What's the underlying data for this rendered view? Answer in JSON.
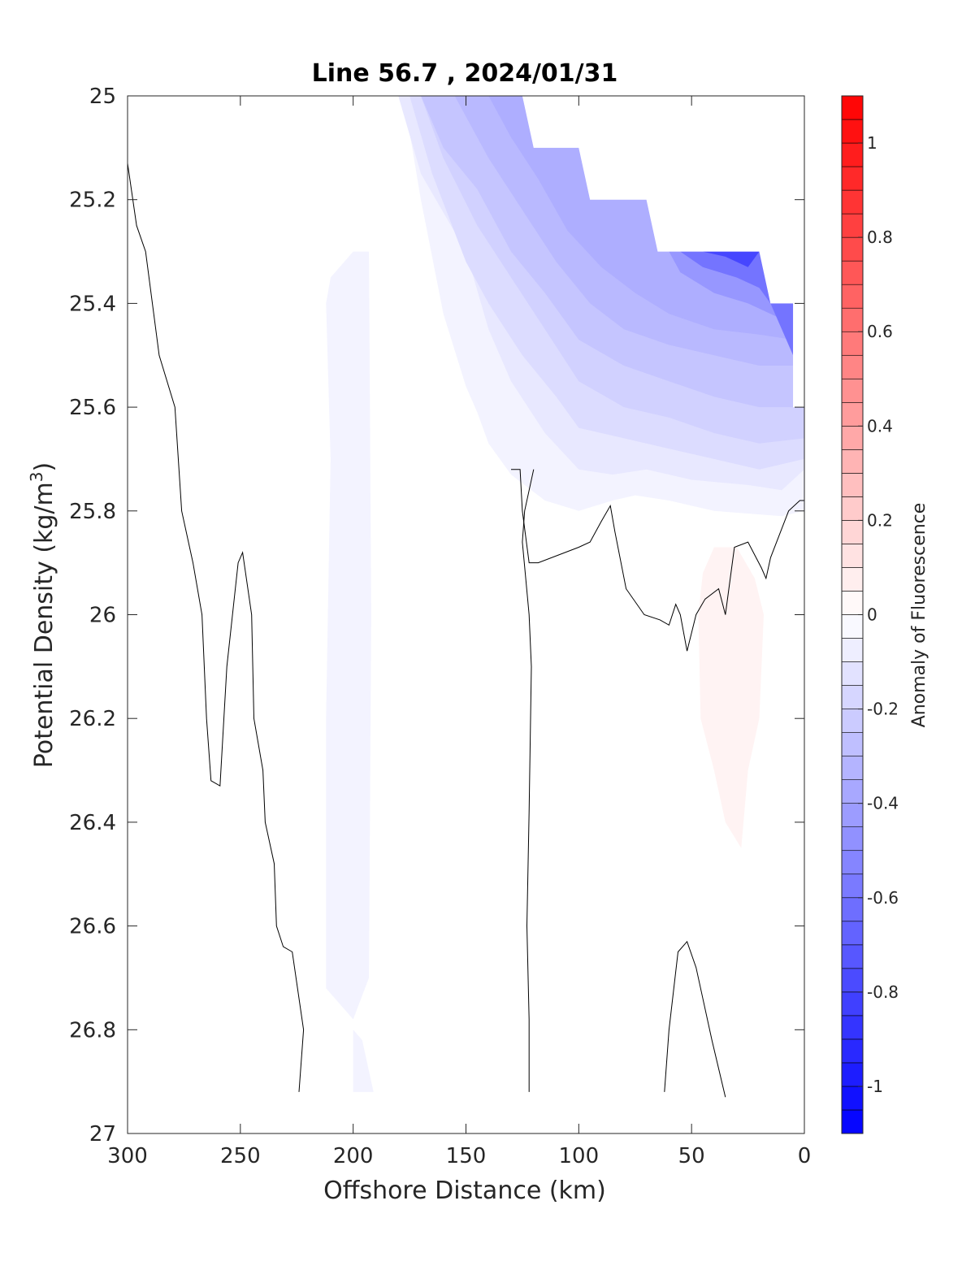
{
  "chart_data": {
    "type": "contour",
    "title": "Line 56.7 , 2024/01/31",
    "xlabel": "Offshore Distance (km)",
    "ylabel": "Potential Density (kg/m",
    "ylabel_sup": "3",
    "ylabel_close": ")",
    "xlim": [
      0,
      300
    ],
    "x_reversed": true,
    "ylim": [
      25,
      27
    ],
    "y_reversed": true,
    "xticks": [
      "300",
      "250",
      "200",
      "150",
      "100",
      "50",
      "0"
    ],
    "yticks": [
      "25",
      "25.2",
      "25.4",
      "25.6",
      "25.8",
      "26",
      "26.2",
      "26.4",
      "26.6",
      "26.8",
      "27"
    ],
    "colorbar": {
      "label": "Anomaly of Fluorescence",
      "range": [
        -1.1,
        1.1
      ],
      "step": 0.05,
      "ticks": [
        "-1",
        "-0.8",
        "-0.6",
        "-0.4",
        "-0.2",
        "0",
        "0.2",
        "0.4",
        "0.6",
        "0.8",
        "1"
      ],
      "low_color": "#0000ff",
      "mid_color": "#ffffff",
      "high_color": "#ff0000"
    },
    "no_data_region": [
      [
        300,
        25
      ],
      [
        125,
        25
      ],
      [
        120,
        25.1
      ],
      [
        100,
        25.1
      ],
      [
        95,
        25.2
      ],
      [
        70,
        25.2
      ],
      [
        65,
        25.3
      ],
      [
        20,
        25.3
      ],
      [
        15,
        25.4
      ],
      [
        5,
        25.4
      ],
      [
        5,
        25.6
      ],
      [
        0,
        25.6
      ],
      [
        0,
        25
      ],
      [
        300,
        25
      ]
    ],
    "filled_levels": [
      {
        "level": -0.05,
        "polygon": [
          [
            295,
            25
          ],
          [
            180,
            25
          ],
          [
            175,
            25.07
          ],
          [
            170,
            25.2
          ],
          [
            160,
            25.42
          ],
          [
            150,
            25.56
          ],
          [
            145,
            25.61
          ],
          [
            140,
            25.67
          ],
          [
            130,
            25.73
          ],
          [
            115,
            25.78
          ],
          [
            100,
            25.8
          ],
          [
            85,
            25.78
          ],
          [
            75,
            25.77
          ],
          [
            60,
            25.78
          ],
          [
            40,
            25.8
          ],
          [
            10,
            25.81
          ],
          [
            0,
            25.8
          ],
          [
            0,
            25.6
          ],
          [
            5,
            25.6
          ],
          [
            5,
            25.4
          ],
          [
            15,
            25.4
          ],
          [
            20,
            25.3
          ],
          [
            65,
            25.3
          ],
          [
            70,
            25.2
          ],
          [
            95,
            25.2
          ],
          [
            100,
            25.1
          ],
          [
            120,
            25.1
          ],
          [
            125,
            25
          ],
          [
            295,
            25
          ]
        ]
      },
      {
        "level": -0.05,
        "polygon": [
          [
            210,
            25.35
          ],
          [
            200,
            25.3
          ],
          [
            193,
            25.3
          ],
          [
            192,
            26
          ],
          [
            193,
            26.7
          ],
          [
            200,
            26.78
          ],
          [
            212,
            26.72
          ],
          [
            212,
            26.2
          ],
          [
            210,
            25.7
          ],
          [
            212,
            25.4
          ],
          [
            210,
            25.35
          ]
        ]
      },
      {
        "level": -0.05,
        "polygon": [
          [
            200,
            26.8
          ],
          [
            196,
            26.82
          ],
          [
            191,
            26.92
          ],
          [
            200,
            26.92
          ],
          [
            200,
            26.8
          ]
        ]
      },
      {
        "level": -0.1,
        "polygon": [
          [
            280,
            25
          ],
          [
            180,
            25
          ],
          [
            170,
            25.15
          ],
          [
            150,
            25.3
          ],
          [
            140,
            25.45
          ],
          [
            130,
            25.55
          ],
          [
            115,
            25.65
          ],
          [
            100,
            25.72
          ],
          [
            85,
            25.73
          ],
          [
            70,
            25.72
          ],
          [
            50,
            25.74
          ],
          [
            25,
            25.75
          ],
          [
            10,
            25.76
          ],
          [
            0,
            25.72
          ],
          [
            0,
            25.6
          ],
          [
            5,
            25.6
          ],
          [
            5,
            25.4
          ],
          [
            15,
            25.4
          ],
          [
            20,
            25.3
          ],
          [
            65,
            25.3
          ],
          [
            70,
            25.2
          ],
          [
            95,
            25.2
          ],
          [
            100,
            25.1
          ],
          [
            120,
            25.1
          ],
          [
            125,
            25
          ],
          [
            280,
            25
          ]
        ]
      },
      {
        "level": -0.15,
        "polygon": [
          [
            230,
            25
          ],
          [
            175,
            25
          ],
          [
            165,
            25.15
          ],
          [
            150,
            25.32
          ],
          [
            140,
            25.4
          ],
          [
            125,
            25.5
          ],
          [
            110,
            25.58
          ],
          [
            100,
            25.64
          ],
          [
            80,
            25.66
          ],
          [
            60,
            25.68
          ],
          [
            40,
            25.7
          ],
          [
            20,
            25.72
          ],
          [
            0,
            25.7
          ],
          [
            0,
            25.6
          ],
          [
            5,
            25.6
          ],
          [
            5,
            25.4
          ],
          [
            15,
            25.4
          ],
          [
            20,
            25.3
          ],
          [
            65,
            25.3
          ],
          [
            70,
            25.2
          ],
          [
            95,
            25.2
          ],
          [
            100,
            25.1
          ],
          [
            120,
            25.1
          ],
          [
            125,
            25
          ],
          [
            230,
            25
          ]
        ]
      },
      {
        "level": -0.2,
        "polygon": [
          [
            210,
            25
          ],
          [
            170,
            25
          ],
          [
            160,
            25.12
          ],
          [
            145,
            25.25
          ],
          [
            130,
            25.35
          ],
          [
            115,
            25.45
          ],
          [
            100,
            25.55
          ],
          [
            80,
            25.6
          ],
          [
            60,
            25.62
          ],
          [
            40,
            25.65
          ],
          [
            20,
            25.67
          ],
          [
            0,
            25.66
          ],
          [
            0,
            25.6
          ],
          [
            5,
            25.6
          ],
          [
            5,
            25.4
          ],
          [
            15,
            25.4
          ],
          [
            20,
            25.3
          ],
          [
            65,
            25.3
          ],
          [
            70,
            25.2
          ],
          [
            95,
            25.2
          ],
          [
            100,
            25.1
          ],
          [
            120,
            25.1
          ],
          [
            125,
            25
          ],
          [
            210,
            25
          ]
        ]
      },
      {
        "level": -0.25,
        "polygon": [
          [
            170,
            25
          ],
          [
            160,
            25.1
          ],
          [
            145,
            25.18
          ],
          [
            130,
            25.3
          ],
          [
            115,
            25.38
          ],
          [
            100,
            25.47
          ],
          [
            80,
            25.52
          ],
          [
            60,
            25.55
          ],
          [
            40,
            25.58
          ],
          [
            20,
            25.6
          ],
          [
            0,
            25.6
          ],
          [
            5,
            25.6
          ],
          [
            5,
            25.4
          ],
          [
            15,
            25.4
          ],
          [
            20,
            25.3
          ],
          [
            65,
            25.3
          ],
          [
            70,
            25.2
          ],
          [
            95,
            25.2
          ],
          [
            100,
            25.1
          ],
          [
            120,
            25.1
          ],
          [
            125,
            25
          ],
          [
            170,
            25
          ]
        ]
      },
      {
        "level": -0.3,
        "polygon": [
          [
            155,
            25
          ],
          [
            140,
            25.12
          ],
          [
            125,
            25.22
          ],
          [
            110,
            25.32
          ],
          [
            95,
            25.4
          ],
          [
            80,
            25.45
          ],
          [
            60,
            25.48
          ],
          [
            40,
            25.5
          ],
          [
            20,
            25.52
          ],
          [
            5,
            25.52
          ],
          [
            5,
            25.4
          ],
          [
            15,
            25.4
          ],
          [
            20,
            25.3
          ],
          [
            65,
            25.3
          ],
          [
            70,
            25.2
          ],
          [
            95,
            25.2
          ],
          [
            100,
            25.1
          ],
          [
            120,
            25.1
          ],
          [
            125,
            25
          ],
          [
            155,
            25
          ]
        ]
      },
      {
        "level": -0.35,
        "polygon": [
          [
            140,
            25
          ],
          [
            130,
            25.08
          ],
          [
            118,
            25.16
          ],
          [
            105,
            25.26
          ],
          [
            90,
            25.33
          ],
          [
            75,
            25.38
          ],
          [
            60,
            25.42
          ],
          [
            40,
            25.45
          ],
          [
            20,
            25.46
          ],
          [
            5,
            25.47
          ],
          [
            5,
            25.4
          ],
          [
            15,
            25.4
          ],
          [
            20,
            25.3
          ],
          [
            65,
            25.3
          ],
          [
            70,
            25.2
          ],
          [
            95,
            25.2
          ],
          [
            100,
            25.1
          ],
          [
            120,
            25.1
          ],
          [
            125,
            25
          ],
          [
            140,
            25
          ]
        ]
      },
      {
        "level": -0.45,
        "polygon": [
          [
            60,
            25.3
          ],
          [
            55,
            25.34
          ],
          [
            40,
            25.38
          ],
          [
            25,
            25.4
          ],
          [
            15,
            25.42
          ],
          [
            5,
            25.44
          ],
          [
            5,
            25.4
          ],
          [
            15,
            25.4
          ],
          [
            20,
            25.3
          ],
          [
            60,
            25.3
          ]
        ]
      },
      {
        "level": -0.6,
        "polygon": [
          [
            55,
            25.3
          ],
          [
            45,
            25.33
          ],
          [
            30,
            25.35
          ],
          [
            20,
            25.37
          ],
          [
            15,
            25.4
          ],
          [
            20,
            25.3
          ],
          [
            55,
            25.3
          ]
        ]
      },
      {
        "level": -0.8,
        "polygon": [
          [
            45,
            25.3
          ],
          [
            35,
            25.31
          ],
          [
            25,
            25.33
          ],
          [
            20,
            25.3
          ],
          [
            45,
            25.3
          ]
        ]
      },
      {
        "level": -0.6,
        "polygon": [
          [
            15,
            25.4
          ],
          [
            10,
            25.45
          ],
          [
            5,
            25.5
          ],
          [
            5,
            25.4
          ],
          [
            15,
            25.4
          ]
        ]
      },
      {
        "level": 0.05,
        "polygon": [
          [
            45,
            25.92
          ],
          [
            40,
            25.87
          ],
          [
            30,
            25.87
          ],
          [
            22,
            25.93
          ],
          [
            18,
            26
          ],
          [
            20,
            26.2
          ],
          [
            25,
            26.3
          ],
          [
            28,
            26.45
          ],
          [
            35,
            26.4
          ],
          [
            40,
            26.3
          ],
          [
            46,
            26.2
          ],
          [
            47,
            26
          ],
          [
            45,
            25.92
          ]
        ]
      },
      {
        "level": 0.05,
        "polygon": [
          [
            30,
            26.04
          ],
          [
            27,
            26.05
          ],
          [
            25,
            26.2
          ],
          [
            28,
            26.3
          ],
          [
            32,
            26.2
          ],
          [
            30,
            26.04
          ]
        ]
      }
    ],
    "zero_contours": [
      [
        [
          300,
          25.13
        ],
        [
          296,
          25.25
        ],
        [
          292,
          25.3
        ],
        [
          286,
          25.5
        ],
        [
          279,
          25.6
        ],
        [
          276,
          25.8
        ],
        [
          271,
          25.9
        ],
        [
          267,
          26.0
        ],
        [
          265,
          26.2
        ],
        [
          263,
          26.32
        ],
        [
          259,
          26.33
        ],
        [
          256,
          26.1
        ],
        [
          251,
          25.9
        ],
        [
          249,
          25.88
        ],
        [
          245,
          26.0
        ],
        [
          244,
          26.2
        ],
        [
          240,
          26.3
        ],
        [
          239,
          26.4
        ],
        [
          235,
          26.48
        ],
        [
          234,
          26.6
        ],
        [
          231,
          26.64
        ],
        [
          227,
          26.65
        ],
        [
          222,
          26.8
        ],
        [
          224,
          26.92
        ]
      ],
      [
        [
          170,
          25.72
        ],
        [
          174,
          25.72
        ],
        [
          175,
          25.8
        ],
        [
          178,
          25.9
        ],
        [
          182,
          25.9
        ],
        [
          200,
          25.87
        ],
        [
          205,
          25.86
        ],
        [
          210,
          25.82
        ],
        [
          214,
          25.79
        ],
        [
          216,
          25.84
        ],
        [
          221,
          25.95
        ],
        [
          229,
          26.0
        ],
        [
          236,
          26.01
        ],
        [
          240,
          26.02
        ],
        [
          243,
          25.98
        ],
        [
          245,
          26.0
        ],
        [
          248,
          26.07
        ],
        [
          252,
          26.0
        ],
        [
          256,
          25.97
        ],
        [
          262,
          25.95
        ],
        [
          265,
          26.0
        ],
        [
          269,
          25.87
        ],
        [
          275,
          25.86
        ],
        [
          281,
          25.91
        ],
        [
          283,
          25.93
        ],
        [
          285,
          25.89
        ],
        [
          293,
          25.8
        ],
        [
          298,
          25.78
        ],
        [
          305,
          25.78
        ],
        [
          310,
          25.8
        ],
        [
          315,
          25.83
        ],
        [
          320,
          25.91
        ]
      ],
      [
        [
          180,
          25.72
        ],
        [
          176,
          25.8
        ],
        [
          175,
          25.86
        ],
        [
          178,
          26.0
        ],
        [
          179,
          26.1
        ],
        [
          178,
          26.38
        ],
        [
          177,
          26.6
        ],
        [
          178,
          26.78
        ],
        [
          178,
          26.92
        ]
      ],
      [
        [
          238,
          26.92
        ],
        [
          240,
          26.8
        ],
        [
          244,
          26.65
        ],
        [
          248,
          26.63
        ],
        [
          252,
          26.68
        ],
        [
          259,
          26.82
        ],
        [
          265,
          26.93
        ]
      ]
    ]
  }
}
